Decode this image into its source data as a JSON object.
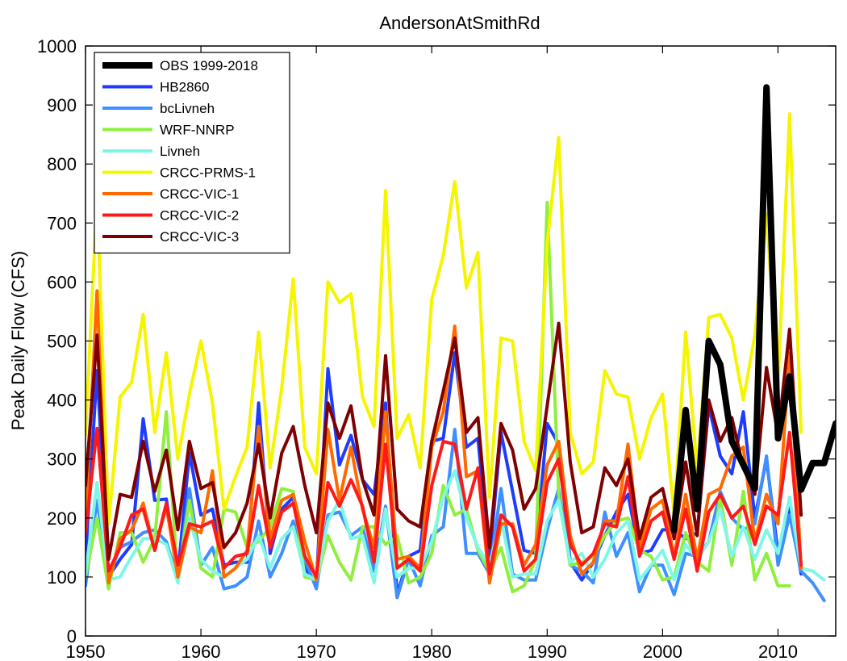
{
  "chart_data": {
    "type": "line",
    "title": "AndersonAtSmithRd",
    "xlabel": "",
    "ylabel": "Peak Daily Flow (CFS)",
    "xlim": [
      1950,
      2015
    ],
    "ylim": [
      0,
      1000
    ],
    "xticks": [
      1950,
      1960,
      1970,
      1980,
      1990,
      2000,
      2010
    ],
    "yticks": [
      0,
      100,
      200,
      300,
      400,
      500,
      600,
      700,
      800,
      900,
      1000
    ],
    "grid": false,
    "legend_position": "top-left",
    "series": [
      {
        "name": "OBS 1999-2018",
        "color": "#000000",
        "width": 8,
        "x": [
          1999,
          2000,
          2001,
          2002,
          2003,
          2004,
          2005,
          2006,
          2007,
          2008,
          2009,
          2010,
          2011,
          2012,
          2013,
          2014,
          2015
        ],
        "y": [
          null,
          null,
          180,
          383,
          215,
          500,
          460,
          330,
          290,
          250,
          930,
          335,
          440,
          248,
          293,
          293,
          360
        ]
      },
      {
        "name": "HB2860",
        "color": "#1e3cff",
        "width": 4,
        "x": [
          1950,
          1951,
          1952,
          1953,
          1954,
          1955,
          1956,
          1957,
          1958,
          1959,
          1960,
          1961,
          1962,
          1963,
          1964,
          1965,
          1966,
          1967,
          1968,
          1969,
          1970,
          1971,
          1972,
          1973,
          1974,
          1975,
          1976,
          1977,
          1978,
          1979,
          1980,
          1981,
          1982,
          1983,
          1984,
          1985,
          1986,
          1987,
          1988,
          1989,
          1990,
          1991,
          1992,
          1993,
          1994,
          1995,
          1996,
          1997,
          1998,
          1999,
          2000,
          2001,
          2002,
          2003,
          2004,
          2005,
          2006,
          2007,
          2008,
          2009,
          2010,
          2011,
          2012
        ],
        "y": [
          130,
          450,
          100,
          130,
          155,
          368,
          230,
          232,
          105,
          310,
          205,
          215,
          120,
          125,
          125,
          395,
          140,
          215,
          235,
          115,
          90,
          453,
          290,
          340,
          265,
          240,
          395,
          70,
          135,
          145,
          330,
          335,
          480,
          320,
          335,
          130,
          345,
          245,
          145,
          140,
          360,
          325,
          125,
          95,
          125,
          170,
          210,
          240,
          140,
          145,
          180,
          180,
          165,
          175,
          390,
          305,
          275,
          380,
          200,
          300,
          140,
          220,
          105
        ]
      },
      {
        "name": "bcLivneh",
        "color": "#3f8fff",
        "width": 4,
        "x": [
          1950,
          1951,
          1952,
          1953,
          1954,
          1955,
          1956,
          1957,
          1958,
          1959,
          1960,
          1961,
          1962,
          1963,
          1964,
          1965,
          1966,
          1967,
          1968,
          1969,
          1970,
          1971,
          1972,
          1973,
          1974,
          1975,
          1976,
          1977,
          1978,
          1979,
          1980,
          1981,
          1982,
          1983,
          1984,
          1985,
          1986,
          1987,
          1988,
          1989,
          1990,
          1991,
          1992,
          1993,
          1994,
          1995,
          1996,
          1997,
          1998,
          1999,
          2000,
          2001,
          2002,
          2003,
          2004,
          2005,
          2006,
          2007,
          2008,
          2009,
          2010,
          2011,
          2012,
          2013,
          2014
        ],
        "y": [
          85,
          230,
          100,
          150,
          160,
          175,
          180,
          160,
          95,
          250,
          120,
          150,
          80,
          85,
          100,
          195,
          100,
          140,
          195,
          130,
          80,
          205,
          210,
          170,
          185,
          110,
          220,
          65,
          130,
          85,
          170,
          185,
          350,
          140,
          140,
          105,
          250,
          105,
          95,
          95,
          180,
          250,
          120,
          110,
          90,
          210,
          135,
          175,
          75,
          120,
          120,
          70,
          140,
          135,
          160,
          245,
          200,
          180,
          190,
          305,
          120,
          205,
          110,
          90,
          60
        ]
      },
      {
        "name": "WRF-NNRP",
        "color": "#8fef3f",
        "width": 4,
        "x": [
          1950,
          1951,
          1952,
          1953,
          1954,
          1955,
          1956,
          1957,
          1958,
          1959,
          1960,
          1961,
          1962,
          1963,
          1964,
          1965,
          1966,
          1967,
          1968,
          1969,
          1970,
          1971,
          1972,
          1973,
          1974,
          1975,
          1976,
          1977,
          1978,
          1979,
          1980,
          1981,
          1982,
          1983,
          1984,
          1985,
          1986,
          1987,
          1988,
          1989,
          1990,
          1991,
          1992,
          1993,
          1994,
          1995,
          1996,
          1997,
          1998,
          1999,
          2000,
          2001,
          2002,
          2003,
          2004,
          2005,
          2006,
          2007,
          2008,
          2009,
          2010,
          2011
        ],
        "y": [
          100,
          200,
          80,
          175,
          175,
          125,
          165,
          380,
          95,
          230,
          115,
          100,
          215,
          210,
          150,
          160,
          185,
          250,
          245,
          100,
          95,
          170,
          125,
          95,
          185,
          185,
          155,
          170,
          90,
          100,
          140,
          255,
          205,
          215,
          145,
          110,
          150,
          75,
          85,
          130,
          735,
          240,
          120,
          125,
          135,
          170,
          195,
          200,
          145,
          135,
          95,
          100,
          175,
          125,
          110,
          235,
          120,
          245,
          95,
          140,
          85,
          85
        ]
      },
      {
        "name": "Livneh",
        "color": "#7ff7e6",
        "width": 4,
        "x": [
          1950,
          1951,
          1952,
          1953,
          1954,
          1955,
          1956,
          1957,
          1958,
          1959,
          1960,
          1961,
          1962,
          1963,
          1964,
          1965,
          1966,
          1967,
          1968,
          1969,
          1970,
          1971,
          1972,
          1973,
          1974,
          1975,
          1976,
          1977,
          1978,
          1979,
          1980,
          1981,
          1982,
          1983,
          1984,
          1985,
          1986,
          1987,
          1988,
          1989,
          1990,
          1991,
          1992,
          1993,
          1994,
          1995,
          1996,
          1997,
          1998,
          1999,
          2000,
          2001,
          2002,
          2003,
          2004,
          2005,
          2006,
          2007,
          2008,
          2009,
          2010,
          2011,
          2012,
          2013,
          2014
        ],
        "y": [
          105,
          260,
          95,
          100,
          135,
          165,
          165,
          155,
          90,
          200,
          130,
          110,
          100,
          115,
          130,
          170,
          115,
          165,
          185,
          105,
          95,
          195,
          230,
          165,
          170,
          90,
          215,
          100,
          115,
          115,
          160,
          235,
          280,
          200,
          150,
          120,
          200,
          100,
          105,
          105,
          195,
          230,
          125,
          140,
          100,
          130,
          175,
          195,
          95,
          120,
          145,
          95,
          155,
          130,
          160,
          215,
          135,
          185,
          130,
          180,
          140,
          235,
          115,
          110,
          95
        ]
      },
      {
        "name": "CRCC-PRMS-1",
        "color": "#f5f500",
        "width": 4,
        "x": [
          1950,
          1951,
          1952,
          1953,
          1954,
          1955,
          1956,
          1957,
          1958,
          1959,
          1960,
          1961,
          1962,
          1963,
          1964,
          1965,
          1966,
          1967,
          1968,
          1969,
          1970,
          1971,
          1972,
          1973,
          1974,
          1975,
          1976,
          1977,
          1978,
          1979,
          1980,
          1981,
          1982,
          1983,
          1984,
          1985,
          1986,
          1987,
          1988,
          1989,
          1990,
          1991,
          1992,
          1993,
          1994,
          1995,
          1996,
          1997,
          1998,
          1999,
          2000,
          2001,
          2002,
          2003,
          2004,
          2005,
          2006,
          2007,
          2008,
          2009,
          2010,
          2011,
          2012
        ],
        "y": [
          340,
          745,
          190,
          405,
          430,
          545,
          345,
          480,
          300,
          410,
          500,
          395,
          215,
          270,
          320,
          515,
          285,
          420,
          605,
          320,
          275,
          600,
          565,
          580,
          405,
          355,
          755,
          335,
          375,
          285,
          570,
          645,
          770,
          590,
          650,
          235,
          505,
          500,
          330,
          280,
          665,
          845,
          345,
          275,
          295,
          450,
          410,
          405,
          300,
          370,
          410,
          205,
          515,
          280,
          540,
          545,
          505,
          400,
          510,
          715,
          425,
          885,
          345
        ]
      },
      {
        "name": "CRCC-VIC-1",
        "color": "#ff6a00",
        "width": 4,
        "x": [
          1950,
          1951,
          1952,
          1953,
          1954,
          1955,
          1956,
          1957,
          1958,
          1959,
          1960,
          1961,
          1962,
          1963,
          1964,
          1965,
          1966,
          1967,
          1968,
          1969,
          1970,
          1971,
          1972,
          1973,
          1974,
          1975,
          1976,
          1977,
          1978,
          1979,
          1980,
          1981,
          1982,
          1983,
          1984,
          1985,
          1986,
          1987,
          1988,
          1989,
          1990,
          1991,
          1992,
          1993,
          1994,
          1995,
          1996,
          1997,
          1998,
          1999,
          2000,
          2001,
          2002,
          2003,
          2004,
          2005,
          2006,
          2007,
          2008,
          2009,
          2010,
          2011,
          2012
        ],
        "y": [
          195,
          585,
          90,
          165,
          180,
          225,
          145,
          220,
          100,
          185,
          175,
          280,
          100,
          115,
          145,
          355,
          165,
          230,
          240,
          160,
          95,
          350,
          230,
          320,
          215,
          150,
          380,
          130,
          135,
          115,
          320,
          380,
          525,
          270,
          280,
          90,
          190,
          190,
          120,
          155,
          290,
          330,
          170,
          105,
          125,
          195,
          195,
          325,
          150,
          215,
          230,
          135,
          240,
          130,
          240,
          250,
          305,
          320,
          160,
          240,
          190,
          480,
          115
        ]
      },
      {
        "name": "CRCC-VIC-2",
        "color": "#ff1a1a",
        "width": 4,
        "x": [
          1950,
          1951,
          1952,
          1953,
          1954,
          1955,
          1956,
          1957,
          1958,
          1959,
          1960,
          1961,
          1962,
          1963,
          1964,
          1965,
          1966,
          1967,
          1968,
          1969,
          1970,
          1971,
          1972,
          1973,
          1974,
          1975,
          1976,
          1977,
          1978,
          1979,
          1980,
          1981,
          1982,
          1983,
          1984,
          1985,
          1986,
          1987,
          1988,
          1989,
          1990,
          1991,
          1992,
          1993,
          1994,
          1995,
          1996,
          1997,
          1998,
          1999,
          2000,
          2001,
          2002,
          2003,
          2004,
          2005,
          2006,
          2007,
          2008,
          2009,
          2010,
          2011,
          2012
        ],
        "y": [
          175,
          352,
          110,
          150,
          205,
          215,
          145,
          225,
          120,
          190,
          185,
          195,
          115,
          135,
          140,
          255,
          150,
          210,
          225,
          135,
          100,
          260,
          220,
          265,
          220,
          125,
          325,
          115,
          130,
          110,
          255,
          330,
          325,
          215,
          285,
          105,
          205,
          185,
          110,
          130,
          260,
          300,
          155,
          120,
          140,
          190,
          185,
          270,
          135,
          195,
          210,
          130,
          215,
          110,
          210,
          240,
          200,
          220,
          155,
          220,
          205,
          345,
          120
        ]
      },
      {
        "name": "CRCC-VIC-3",
        "color": "#7f0000",
        "width": 4,
        "x": [
          1950,
          1951,
          1952,
          1953,
          1954,
          1955,
          1956,
          1957,
          1958,
          1959,
          1960,
          1961,
          1962,
          1963,
          1964,
          1965,
          1966,
          1967,
          1968,
          1969,
          1970,
          1971,
          1972,
          1973,
          1974,
          1975,
          1976,
          1977,
          1978,
          1979,
          1980,
          1981,
          1982,
          1983,
          1984,
          1985,
          1986,
          1987,
          1988,
          1989,
          1990,
          1991,
          1992,
          1993,
          1994,
          1995,
          1996,
          1997,
          1998,
          1999,
          2000,
          2001,
          2002,
          2003,
          2004,
          2005,
          2006,
          2007,
          2008,
          2009,
          2010,
          2011,
          2012
        ],
        "y": [
          255,
          510,
          130,
          240,
          235,
          330,
          245,
          315,
          180,
          330,
          250,
          260,
          150,
          175,
          225,
          325,
          200,
          310,
          355,
          255,
          175,
          395,
          335,
          390,
          265,
          205,
          475,
          215,
          195,
          185,
          330,
          415,
          505,
          345,
          370,
          150,
          360,
          315,
          215,
          250,
          390,
          530,
          295,
          175,
          185,
          285,
          255,
          300,
          165,
          235,
          250,
          165,
          295,
          170,
          400,
          330,
          370,
          285,
          240,
          455,
          340,
          520,
          205
        ]
      }
    ]
  }
}
